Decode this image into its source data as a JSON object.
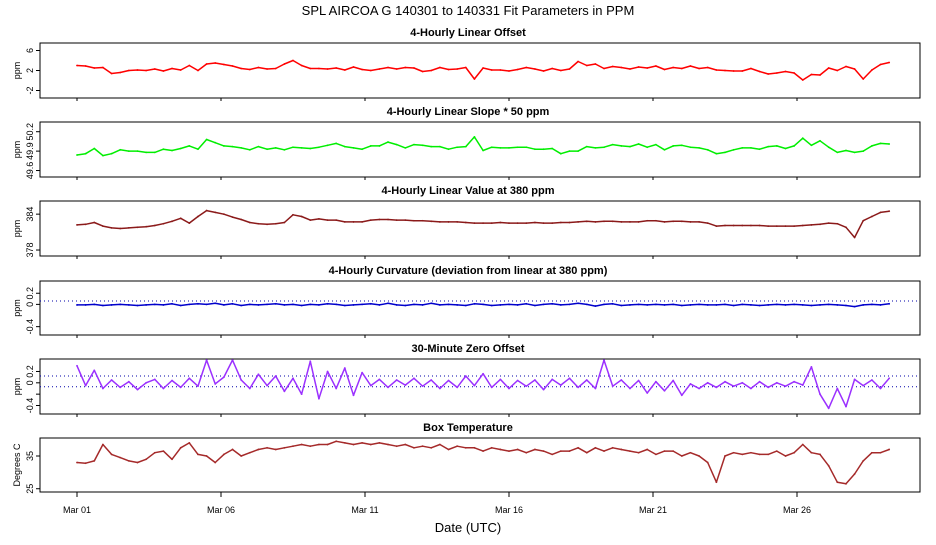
{
  "title": "SPL   AIRCOA G   140301 to 140331   Fit Parameters in PPM",
  "x_axis": {
    "label": "Date (UTC)",
    "range_days": [
      0.0,
      29.8
    ],
    "ticks": [
      {
        "label": "Mar 01",
        "day": 0
      },
      {
        "label": "Mar 06",
        "day": 5
      },
      {
        "label": "Mar 11",
        "day": 10
      },
      {
        "label": "Mar 16",
        "day": 15
      },
      {
        "label": "Mar 21",
        "day": 20
      },
      {
        "label": "Mar 26",
        "day": 25
      }
    ]
  },
  "colors": {
    "offset": "#ff0000",
    "slope": "#00ee00",
    "value": "#8b1a1a",
    "curvature": "#0000cc",
    "zero_offset": "#9b30ff",
    "box_temp": "#a52a2a",
    "frame": "#000000",
    "refline": "#0000aa"
  },
  "chart_data": [
    {
      "id": "offset",
      "type": "line",
      "title": "4-Hourly Linear Offset",
      "ylabel": "ppm",
      "ylim": [
        -3.5,
        7.5
      ],
      "yticks": [
        -2,
        2,
        6
      ],
      "color": "#ff0000",
      "x": [
        0.0,
        0.3,
        0.6,
        0.9,
        1.2,
        1.5,
        1.8,
        2.1,
        2.4,
        2.7,
        3.0,
        3.3,
        3.6,
        3.9,
        4.2,
        4.5,
        4.8,
        5.1,
        5.4,
        5.7,
        6.0,
        6.3,
        6.6,
        6.9,
        7.2,
        7.5,
        7.8,
        8.1,
        8.4,
        8.7,
        9.0,
        9.3,
        9.6,
        9.9,
        10.2,
        10.5,
        10.8,
        11.1,
        11.4,
        11.7,
        12.0,
        12.3,
        12.6,
        12.9,
        13.2,
        13.5,
        13.8,
        14.1,
        14.4,
        14.7,
        15.0,
        15.3,
        15.6,
        15.9,
        16.2,
        16.5,
        16.8,
        17.1,
        17.4,
        17.7,
        18.0,
        18.3,
        18.6,
        18.9,
        19.2,
        19.5,
        19.8,
        20.1,
        20.4,
        20.7,
        21.0,
        21.3,
        21.6,
        21.9,
        22.2,
        22.5,
        22.8,
        23.1,
        23.4,
        23.7,
        24.0,
        24.3,
        24.6,
        24.9,
        25.2,
        25.5,
        25.8,
        26.1,
        26.4,
        26.7,
        27.0,
        27.3,
        27.6,
        27.9,
        28.2
      ],
      "y": [
        3.0,
        2.9,
        2.5,
        2.6,
        1.4,
        1.6,
        2.0,
        2.1,
        2.0,
        2.3,
        1.9,
        2.4,
        2.1,
        3.0,
        2.0,
        3.3,
        3.5,
        3.2,
        2.9,
        2.4,
        2.2,
        2.6,
        2.3,
        2.4,
        3.3,
        4.0,
        3.0,
        2.4,
        2.4,
        2.3,
        2.5,
        2.1,
        2.7,
        2.2,
        2.0,
        2.3,
        2.6,
        2.3,
        2.6,
        2.5,
        1.8,
        2.0,
        2.6,
        2.2,
        2.3,
        2.6,
        0.3,
        2.5,
        2.1,
        2.1,
        1.9,
        2.2,
        2.6,
        2.3,
        1.9,
        2.4,
        2.0,
        2.3,
        3.8,
        3.0,
        3.3,
        2.4,
        2.8,
        2.6,
        2.3,
        2.7,
        2.5,
        2.9,
        2.2,
        2.6,
        2.4,
        2.9,
        2.4,
        2.6,
        2.1,
        2.0,
        1.9,
        1.9,
        2.4,
        1.8,
        1.3,
        1.5,
        1.8,
        1.5,
        0.1,
        1.2,
        1.1,
        2.5,
        2.0,
        2.8,
        2.3,
        0.3,
        2.1,
        3.2,
        3.6
      ]
    },
    {
      "id": "slope",
      "type": "line",
      "title": "4-Hourly Linear Slope * 50 ppm",
      "ylabel": "ppm",
      "ylim": [
        49.5,
        50.35
      ],
      "yticks": [
        49.6,
        49.9,
        50.2
      ],
      "ytick_labels": [
        "49.6",
        "49.9",
        "50.2"
      ],
      "color": "#00ee00",
      "x": [
        0.0,
        0.3,
        0.6,
        0.9,
        1.2,
        1.5,
        1.8,
        2.1,
        2.4,
        2.7,
        3.0,
        3.3,
        3.6,
        3.9,
        4.2,
        4.5,
        4.8,
        5.1,
        5.4,
        5.7,
        6.0,
        6.3,
        6.6,
        6.9,
        7.2,
        7.5,
        7.8,
        8.1,
        8.4,
        8.7,
        9.0,
        9.3,
        9.6,
        9.9,
        10.2,
        10.5,
        10.8,
        11.1,
        11.4,
        11.7,
        12.0,
        12.3,
        12.6,
        12.9,
        13.2,
        13.5,
        13.8,
        14.1,
        14.4,
        14.7,
        15.0,
        15.3,
        15.6,
        15.9,
        16.2,
        16.5,
        16.8,
        17.1,
        17.4,
        17.7,
        18.0,
        18.3,
        18.6,
        18.9,
        19.2,
        19.5,
        19.8,
        20.1,
        20.4,
        20.7,
        21.0,
        21.3,
        21.6,
        21.9,
        22.2,
        22.5,
        22.8,
        23.1,
        23.4,
        23.7,
        24.0,
        24.3,
        24.6,
        24.9,
        25.2,
        25.5,
        25.8,
        26.1,
        26.4,
        26.7,
        27.0,
        27.3,
        27.6,
        27.9,
        28.2
      ],
      "y": [
        49.84,
        49.86,
        49.94,
        49.83,
        49.86,
        49.92,
        49.9,
        49.9,
        49.88,
        49.88,
        49.93,
        49.91,
        49.94,
        49.98,
        49.93,
        50.08,
        50.03,
        49.98,
        49.97,
        49.95,
        49.92,
        49.97,
        49.93,
        49.95,
        49.92,
        49.96,
        49.95,
        49.94,
        49.96,
        49.99,
        50.02,
        49.97,
        49.95,
        49.93,
        49.98,
        49.98,
        50.04,
        50.0,
        49.95,
        50.0,
        49.99,
        49.97,
        49.97,
        49.93,
        49.96,
        49.97,
        50.12,
        49.91,
        49.96,
        49.95,
        49.95,
        49.96,
        49.96,
        49.93,
        49.93,
        49.94,
        49.86,
        49.9,
        49.9,
        49.97,
        49.95,
        49.96,
        50.0,
        49.98,
        49.97,
        50.01,
        49.96,
        50.0,
        49.92,
        49.98,
        49.99,
        49.96,
        49.95,
        49.92,
        49.86,
        49.88,
        49.92,
        49.95,
        49.95,
        49.93,
        49.97,
        49.98,
        49.94,
        49.98,
        50.1,
        49.99,
        50.06,
        49.96,
        49.88,
        49.91,
        49.88,
        49.9,
        49.98,
        50.02,
        50.01
      ]
    },
    {
      "id": "value",
      "type": "line",
      "title": "4-Hourly Linear Value at 380 ppm",
      "ylabel": "ppm",
      "ylim": [
        377.0,
        386.2
      ],
      "yticks": [
        378,
        384
      ],
      "color": "#8b1a1a",
      "x": [
        0.0,
        0.3,
        0.6,
        0.9,
        1.2,
        1.5,
        1.8,
        2.1,
        2.4,
        2.7,
        3.0,
        3.3,
        3.6,
        3.9,
        4.2,
        4.5,
        4.8,
        5.1,
        5.4,
        5.7,
        6.0,
        6.3,
        6.6,
        6.9,
        7.2,
        7.5,
        7.8,
        8.1,
        8.4,
        8.7,
        9.0,
        9.3,
        9.6,
        9.9,
        10.2,
        10.5,
        10.8,
        11.1,
        11.4,
        11.7,
        12.0,
        12.3,
        12.6,
        12.9,
        13.2,
        13.5,
        13.8,
        14.1,
        14.4,
        14.7,
        15.0,
        15.3,
        15.6,
        15.9,
        16.2,
        16.5,
        16.8,
        17.1,
        17.4,
        17.7,
        18.0,
        18.3,
        18.6,
        18.9,
        19.2,
        19.5,
        19.8,
        20.1,
        20.4,
        20.7,
        21.0,
        21.3,
        21.6,
        21.9,
        22.2,
        22.5,
        22.8,
        23.1,
        23.4,
        23.7,
        24.0,
        24.3,
        24.6,
        24.9,
        25.2,
        25.5,
        25.8,
        26.1,
        26.4,
        26.7,
        27.0,
        27.3,
        27.6,
        27.9,
        28.2
      ],
      "y": [
        382.2,
        382.3,
        382.6,
        382.0,
        381.7,
        381.6,
        381.7,
        381.8,
        381.9,
        382.1,
        382.4,
        382.8,
        383.3,
        382.5,
        383.6,
        384.6,
        384.3,
        384.0,
        383.5,
        383.1,
        382.6,
        382.4,
        382.3,
        382.4,
        382.6,
        383.9,
        383.6,
        383.0,
        383.2,
        383.0,
        383.0,
        382.7,
        382.7,
        382.7,
        383.0,
        383.1,
        383.1,
        383.0,
        383.0,
        382.9,
        382.9,
        382.8,
        382.7,
        382.7,
        382.7,
        382.6,
        382.5,
        382.5,
        382.5,
        382.6,
        382.5,
        382.5,
        382.5,
        382.6,
        382.5,
        382.5,
        382.6,
        382.6,
        382.7,
        382.8,
        382.7,
        382.8,
        382.8,
        382.7,
        382.7,
        382.7,
        382.9,
        382.9,
        382.7,
        382.8,
        382.8,
        382.7,
        382.7,
        382.5,
        382.0,
        382.1,
        382.1,
        382.1,
        382.1,
        382.1,
        382.0,
        382.0,
        382.0,
        382.0,
        382.1,
        382.2,
        382.3,
        382.5,
        382.4,
        381.8,
        380.1,
        382.9,
        383.6,
        384.3,
        384.5
      ]
    },
    {
      "id": "curvature",
      "type": "line",
      "title": "4-Hourly Curvature (deviation from linear at 380 ppm)",
      "ylabel": "ppm",
      "ylim": [
        -0.55,
        0.42
      ],
      "yticks": [
        -0.4,
        0.0,
        0.2
      ],
      "ytick_labels": [
        "-0.4",
        "0",
        "0.2"
      ],
      "refline": 0.06,
      "color": "#0000cc",
      "x": [
        0.0,
        0.3,
        0.6,
        0.9,
        1.2,
        1.5,
        1.8,
        2.1,
        2.4,
        2.7,
        3.0,
        3.3,
        3.6,
        3.9,
        4.2,
        4.5,
        4.8,
        5.1,
        5.4,
        5.7,
        6.0,
        6.3,
        6.6,
        6.9,
        7.2,
        7.5,
        7.8,
        8.1,
        8.4,
        8.7,
        9.0,
        9.3,
        9.6,
        9.9,
        10.2,
        10.5,
        10.8,
        11.1,
        11.4,
        11.7,
        12.0,
        12.3,
        12.6,
        12.9,
        13.2,
        13.5,
        13.8,
        14.1,
        14.4,
        14.7,
        15.0,
        15.3,
        15.6,
        15.9,
        16.2,
        16.5,
        16.8,
        17.1,
        17.4,
        17.7,
        18.0,
        18.3,
        18.6,
        18.9,
        19.2,
        19.5,
        19.8,
        20.1,
        20.4,
        20.7,
        21.0,
        21.3,
        21.6,
        21.9,
        22.2,
        22.5,
        22.8,
        23.1,
        23.4,
        23.7,
        24.0,
        24.3,
        24.6,
        24.9,
        25.2,
        25.5,
        25.8,
        26.1,
        26.4,
        26.7,
        27.0,
        27.3,
        27.6,
        27.9,
        28.2
      ],
      "y": [
        -0.01,
        -0.01,
        0.0,
        -0.02,
        -0.01,
        0.0,
        -0.01,
        -0.02,
        -0.01,
        0.0,
        -0.01,
        0.01,
        -0.02,
        0.0,
        0.01,
        0.0,
        0.02,
        -0.01,
        0.01,
        -0.02,
        0.0,
        -0.01,
        0.0,
        0.01,
        -0.01,
        0.0,
        -0.02,
        0.0,
        -0.01,
        0.01,
        0.0,
        -0.02,
        -0.01,
        0.0,
        0.01,
        -0.01,
        0.02,
        -0.01,
        -0.02,
        0.0,
        -0.01,
        0.02,
        -0.01,
        0.0,
        -0.01,
        -0.02,
        0.01,
        0.0,
        -0.02,
        -0.01,
        0.0,
        -0.01,
        0.01,
        -0.02,
        0.0,
        0.01,
        -0.01,
        0.0,
        0.02,
        0.0,
        -0.03,
        0.0,
        0.01,
        -0.02,
        -0.01,
        0.0,
        -0.01,
        0.0,
        -0.01,
        0.0,
        -0.02,
        -0.01,
        0.0,
        -0.01,
        -0.01,
        0.0,
        -0.02,
        0.0,
        -0.01,
        -0.02,
        -0.01,
        0.0,
        -0.01,
        0.0,
        -0.01,
        -0.02,
        -0.01,
        0.0,
        -0.01,
        -0.02,
        -0.04,
        -0.01,
        0.0,
        -0.01,
        0.01
      ]
    },
    {
      "id": "zero_offset",
      "type": "line",
      "title": "30-Minute Zero Offset",
      "ylabel": "ppm",
      "ylim": [
        -0.55,
        0.42
      ],
      "yticks": [
        -0.4,
        -0.2,
        0.0,
        0.2
      ],
      "ytick_labels": [
        "-0.4",
        "",
        "0",
        "0.2"
      ],
      "reflines": [
        0.12,
        -0.07
      ],
      "color": "#9b30ff",
      "x": [
        0.0,
        0.3,
        0.6,
        0.9,
        1.2,
        1.5,
        1.8,
        2.1,
        2.4,
        2.7,
        3.0,
        3.3,
        3.6,
        3.9,
        4.2,
        4.5,
        4.8,
        5.1,
        5.4,
        5.7,
        6.0,
        6.3,
        6.6,
        6.9,
        7.2,
        7.5,
        7.8,
        8.1,
        8.4,
        8.7,
        9.0,
        9.3,
        9.6,
        9.9,
        10.2,
        10.5,
        10.8,
        11.1,
        11.4,
        11.7,
        12.0,
        12.3,
        12.6,
        12.9,
        13.2,
        13.5,
        13.8,
        14.1,
        14.4,
        14.7,
        15.0,
        15.3,
        15.6,
        15.9,
        16.2,
        16.5,
        16.8,
        17.1,
        17.4,
        17.7,
        18.0,
        18.3,
        18.6,
        18.9,
        19.2,
        19.5,
        19.8,
        20.1,
        20.4,
        20.7,
        21.0,
        21.3,
        21.6,
        21.9,
        22.2,
        22.5,
        22.8,
        23.1,
        23.4,
        23.7,
        24.0,
        24.3,
        24.6,
        24.9,
        25.2,
        25.5,
        25.8,
        26.1,
        26.4,
        26.7,
        27.0,
        27.3,
        27.6,
        27.9,
        28.2
      ],
      "y": [
        0.3,
        -0.05,
        0.22,
        -0.1,
        0.05,
        -0.08,
        0.02,
        -0.12,
        0.0,
        0.06,
        -0.1,
        0.04,
        -0.08,
        0.08,
        -0.06,
        0.4,
        -0.02,
        0.1,
        0.4,
        0.05,
        -0.1,
        0.15,
        -0.05,
        0.12,
        -0.15,
        0.08,
        -0.2,
        0.38,
        -0.28,
        0.2,
        -0.1,
        0.26,
        -0.22,
        0.18,
        -0.05,
        0.06,
        -0.08,
        0.05,
        -0.04,
        0.08,
        -0.06,
        0.05,
        -0.1,
        0.04,
        -0.08,
        0.12,
        -0.05,
        0.16,
        -0.08,
        0.06,
        -0.1,
        0.04,
        -0.06,
        0.05,
        -0.12,
        0.06,
        -0.04,
        0.08,
        -0.08,
        0.05,
        -0.1,
        0.4,
        -0.06,
        0.05,
        -0.1,
        0.04,
        -0.18,
        0.02,
        -0.14,
        0.04,
        -0.22,
        -0.02,
        -0.1,
        0.0,
        -0.08,
        0.02,
        -0.06,
        0.0,
        -0.1,
        0.02,
        -0.08,
        0.0,
        -0.06,
        0.02,
        -0.04,
        0.28,
        -0.2,
        -0.45,
        -0.1,
        -0.42,
        0.06,
        -0.05,
        0.05,
        -0.1,
        0.08
      ]
    },
    {
      "id": "box_temp",
      "type": "line",
      "title": "Box Temperature",
      "ylabel": "Degrees C",
      "ylim": [
        24.0,
        40.5
      ],
      "yticks": [
        25,
        35
      ],
      "color": "#a52a2a",
      "x": [
        0.0,
        0.3,
        0.6,
        0.9,
        1.2,
        1.5,
        1.8,
        2.1,
        2.4,
        2.7,
        3.0,
        3.3,
        3.6,
        3.9,
        4.2,
        4.5,
        4.8,
        5.1,
        5.4,
        5.7,
        6.0,
        6.3,
        6.6,
        6.9,
        7.2,
        7.5,
        7.8,
        8.1,
        8.4,
        8.7,
        9.0,
        9.3,
        9.6,
        9.9,
        10.2,
        10.5,
        10.8,
        11.1,
        11.4,
        11.7,
        12.0,
        12.3,
        12.6,
        12.9,
        13.2,
        13.5,
        13.8,
        14.1,
        14.4,
        14.7,
        15.0,
        15.3,
        15.6,
        15.9,
        16.2,
        16.5,
        16.8,
        17.1,
        17.4,
        17.7,
        18.0,
        18.3,
        18.6,
        18.9,
        19.2,
        19.5,
        19.8,
        20.1,
        20.4,
        20.7,
        21.0,
        21.3,
        21.6,
        21.9,
        22.2,
        22.5,
        22.8,
        23.1,
        23.4,
        23.7,
        24.0,
        24.3,
        24.6,
        24.9,
        25.2,
        25.5,
        25.8,
        26.1,
        26.4,
        26.7,
        27.0,
        27.3,
        27.6,
        27.9,
        28.2
      ],
      "y": [
        33.0,
        32.8,
        33.5,
        38.5,
        35.5,
        34.5,
        33.5,
        33.0,
        34.0,
        36.0,
        36.5,
        34.0,
        37.5,
        39.0,
        35.5,
        35.0,
        33.0,
        35.5,
        37.0,
        35.0,
        36.0,
        37.0,
        37.5,
        37.0,
        37.5,
        38.0,
        38.5,
        38.0,
        38.5,
        38.5,
        39.5,
        39.0,
        38.5,
        39.0,
        38.5,
        39.0,
        38.5,
        38.0,
        38.5,
        37.5,
        38.0,
        37.5,
        38.5,
        37.0,
        38.0,
        37.5,
        37.5,
        36.5,
        37.5,
        37.0,
        36.5,
        37.0,
        36.0,
        37.0,
        36.5,
        35.5,
        36.5,
        36.5,
        37.5,
        36.0,
        37.5,
        36.5,
        37.5,
        37.0,
        36.5,
        36.0,
        37.0,
        35.5,
        36.5,
        36.5,
        35.0,
        36.0,
        35.0,
        33.0,
        27.0,
        35.0,
        36.0,
        35.5,
        36.0,
        35.5,
        35.5,
        36.5,
        35.0,
        36.0,
        38.5,
        36.0,
        35.5,
        32.0,
        27.0,
        26.5,
        29.5,
        33.5,
        36.0,
        36.0,
        37.0
      ]
    }
  ]
}
